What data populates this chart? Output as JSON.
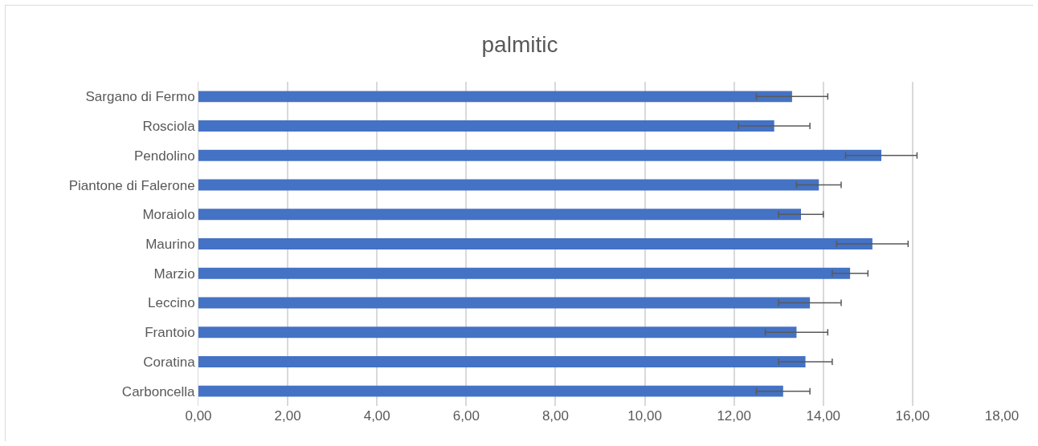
{
  "chart_data": {
    "type": "bar",
    "orientation": "horizontal",
    "title": "palmitic",
    "categories": [
      "Sargano di Fermo",
      "Rosciola",
      "Pendolino",
      "Piantone di Falerone",
      "Moraiolo",
      "Maurino",
      "Marzio",
      "Leccino",
      "Frantoio",
      "Coratina",
      "Carboncella"
    ],
    "values": [
      13.3,
      12.9,
      15.3,
      13.9,
      13.5,
      15.1,
      14.6,
      13.7,
      13.4,
      13.6,
      13.1
    ],
    "errors": [
      0.8,
      0.8,
      0.8,
      0.5,
      0.5,
      0.8,
      0.4,
      0.7,
      0.7,
      0.6,
      0.6
    ],
    "color": "#4472c4",
    "xlim": [
      0,
      18
    ],
    "xticks": [
      {
        "value": 0,
        "label": "0,00"
      },
      {
        "value": 2,
        "label": "2,00"
      },
      {
        "value": 4,
        "label": "4,00"
      },
      {
        "value": 6,
        "label": "6,00"
      },
      {
        "value": 8,
        "label": "8,00"
      },
      {
        "value": 10,
        "label": "10,00"
      },
      {
        "value": 12,
        "label": "12,00"
      },
      {
        "value": 14,
        "label": "14,00"
      },
      {
        "value": 16,
        "label": "16,00"
      },
      {
        "value": 18,
        "label": "18,00"
      }
    ],
    "grid": "x",
    "legend": false
  }
}
